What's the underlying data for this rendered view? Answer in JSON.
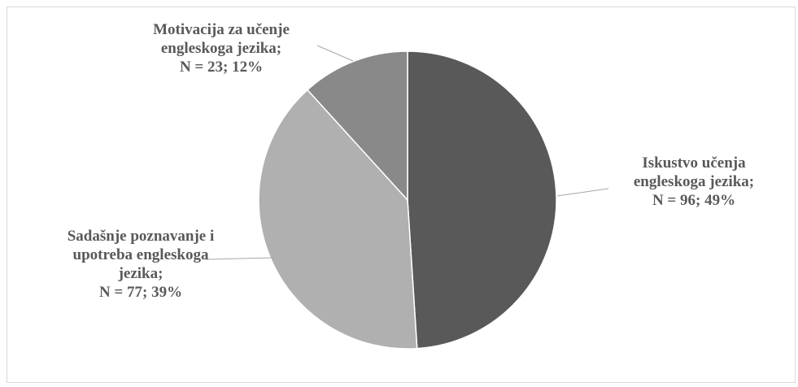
{
  "chart_data": {
    "type": "pie",
    "title": "",
    "slices": [
      {
        "label_lines": [
          "Iskustvo učenja",
          "engleskoga jezika;",
          "N = 96; 49%"
        ],
        "category": "Iskustvo učenja engleskoga jezika",
        "n": 96,
        "percent": 49,
        "color": "#595959"
      },
      {
        "label_lines": [
          "Sadašnje poznavanje i",
          "upotreba engleskoga",
          "jezika;",
          "N = 77; 39%"
        ],
        "category": "Sadašnje poznavanje i upotreba engleskoga jezika",
        "n": 77,
        "percent": 39,
        "color": "#b0b0b0"
      },
      {
        "label_lines": [
          "Motivacija za učenje",
          "engleskoga jezika;",
          "N = 23; 12%"
        ],
        "category": "Motivacija za učenje engleskoga jezika",
        "n": 23,
        "percent": 12,
        "color": "#898989"
      }
    ],
    "start_angle_deg": 0,
    "direction": "clockwise",
    "label_color": "#595959",
    "leader_line_color": "#a6a6a6",
    "slice_border_color": "#ffffff"
  }
}
